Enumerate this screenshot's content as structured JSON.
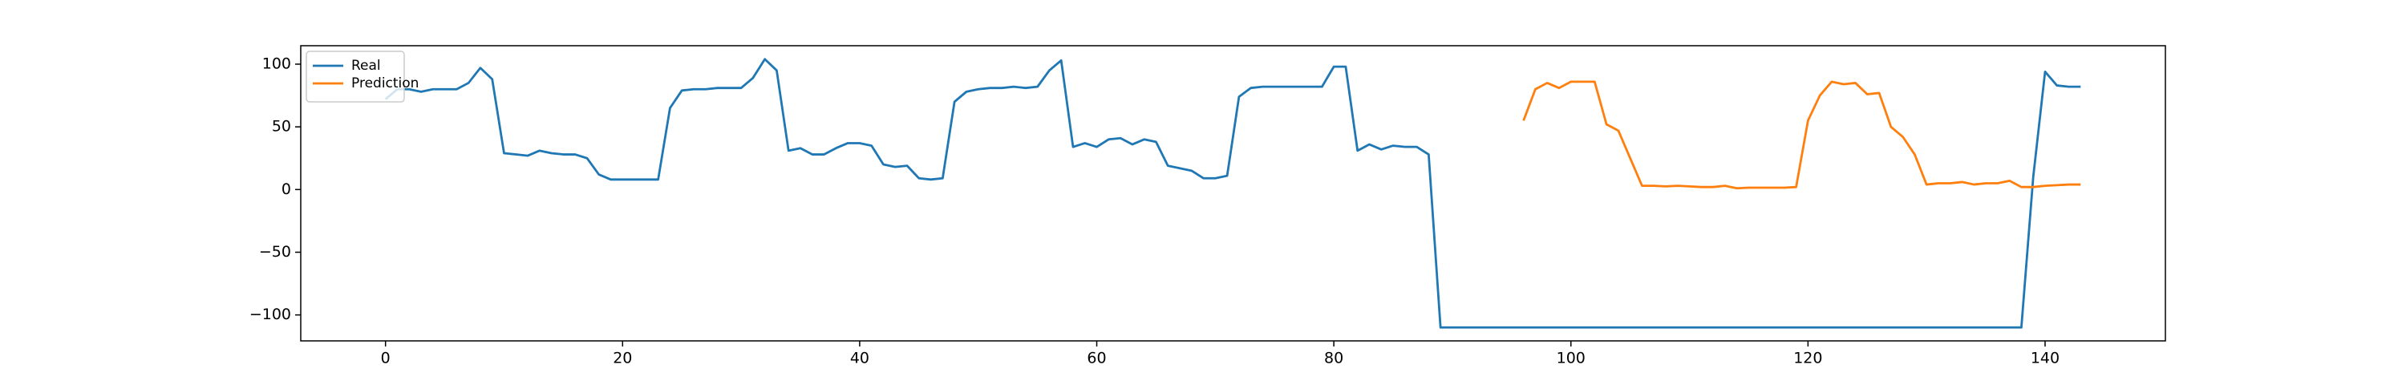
{
  "chart_data": {
    "type": "line",
    "series": [
      {
        "name": "Real",
        "color": "#1f77b4",
        "values": [
          72,
          80,
          80,
          78,
          80,
          80,
          80,
          85,
          97,
          88,
          29,
          28,
          27,
          31,
          29,
          28,
          28,
          25,
          12,
          8,
          8,
          8,
          8,
          8,
          65,
          79,
          80,
          80,
          81,
          81,
          81,
          89,
          104,
          95,
          31,
          33,
          28,
          28,
          33,
          37,
          37,
          35,
          20,
          18,
          19,
          9,
          8,
          9,
          70,
          78,
          80,
          81,
          81,
          82,
          81,
          82,
          95,
          103,
          34,
          37,
          34,
          40,
          41,
          36,
          40,
          38,
          19,
          17,
          15,
          9,
          9,
          11,
          74,
          81,
          82,
          82,
          82,
          82,
          82,
          82,
          98,
          98,
          31,
          36,
          32,
          35,
          34,
          34,
          28,
          -110,
          -110,
          -110,
          -110,
          -110,
          -110,
          -110,
          -110,
          -110,
          -110,
          -110,
          -110,
          -110,
          -110,
          -110,
          -110,
          -110,
          -110,
          -110,
          -110,
          -110,
          -110,
          -110,
          -110,
          -110,
          -110,
          -110,
          -110,
          -110,
          -110,
          -110,
          -110,
          -110,
          -110,
          -110,
          -110,
          -110,
          -110,
          -110,
          -110,
          -110,
          -110,
          -110,
          -110,
          -110,
          -110,
          -110,
          -110,
          -110,
          -110,
          10,
          94,
          83,
          82,
          82
        ]
      },
      {
        "name": "Prediction",
        "color": "#ff7f0e",
        "values": [
          null,
          null,
          null,
          null,
          null,
          null,
          null,
          null,
          null,
          null,
          null,
          null,
          null,
          null,
          null,
          null,
          null,
          null,
          null,
          null,
          null,
          null,
          null,
          null,
          null,
          null,
          null,
          null,
          null,
          null,
          null,
          null,
          null,
          null,
          null,
          null,
          null,
          null,
          null,
          null,
          null,
          null,
          null,
          null,
          null,
          null,
          null,
          null,
          null,
          null,
          null,
          null,
          null,
          null,
          null,
          null,
          null,
          null,
          null,
          null,
          null,
          null,
          null,
          null,
          null,
          null,
          null,
          null,
          null,
          null,
          null,
          null,
          null,
          null,
          null,
          null,
          null,
          null,
          null,
          null,
          null,
          null,
          null,
          null,
          null,
          null,
          null,
          null,
          null,
          null,
          null,
          null,
          null,
          null,
          null,
          null,
          55,
          80,
          85,
          81,
          86,
          86,
          86,
          52,
          47,
          25,
          3,
          3,
          2.5,
          3,
          2.5,
          2,
          2,
          3,
          1,
          1.5,
          1.5,
          1.5,
          1.5,
          2,
          55,
          75,
          86,
          84,
          85,
          76,
          77,
          50,
          42,
          28,
          4,
          5,
          5,
          6,
          4,
          5,
          5,
          7,
          2,
          2,
          3,
          3.5,
          4,
          4
        ]
      }
    ],
    "xlim": [
      -7.15,
      150.15
    ],
    "xticks": [
      0,
      20,
      40,
      60,
      80,
      100,
      120,
      140
    ],
    "ylim": [
      -120.7,
      114.7
    ],
    "yticks": [
      {
        "value": -100,
        "label": "−100"
      },
      {
        "value": -50,
        "label": "−50"
      },
      0,
      50,
      100
    ],
    "legend": "upper left"
  }
}
